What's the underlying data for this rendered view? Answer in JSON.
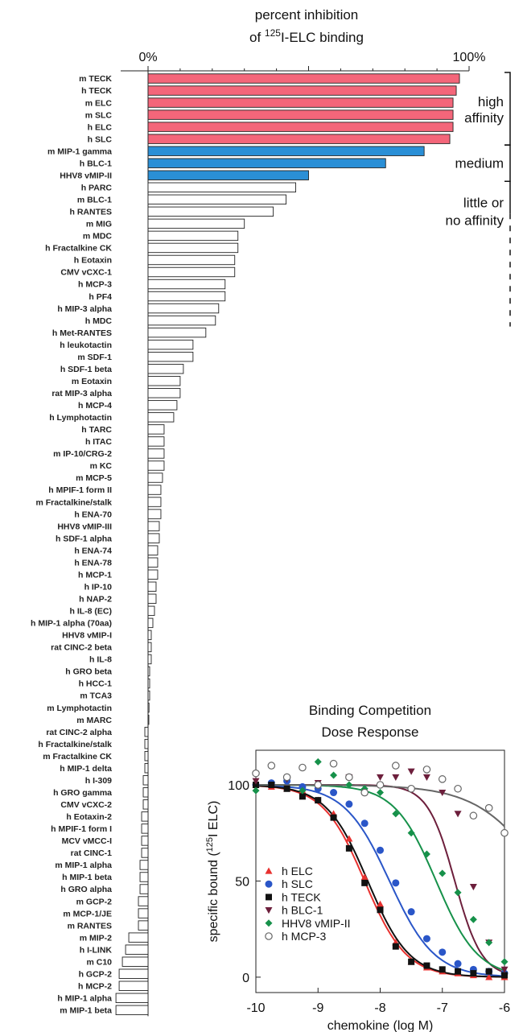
{
  "chart_data": [
    {
      "type": "bar",
      "orientation": "horizontal",
      "title_line1": "percent inhibition",
      "title_line2_pre": "of ",
      "title_line2_sup": "125",
      "title_line2_post": "I-ELC binding",
      "x_tick_labels": [
        "0%",
        "100%"
      ],
      "xlim": [
        -10,
        100
      ],
      "colors": {
        "high": "#f4667a",
        "medium": "#2a8fd6",
        "low": "#ffffff"
      },
      "groups": [
        {
          "label_lines": [
            "high",
            "affinity"
          ],
          "rows": [
            0,
            5
          ]
        },
        {
          "label_lines": [
            "medium"
          ],
          "rows": [
            6,
            8
          ]
        },
        {
          "label_lines": [
            "little or",
            "no affinity"
          ],
          "rows": [
            9,
            20
          ]
        }
      ],
      "categories": [
        "m TECK",
        "h TECK",
        "m ELC",
        "m SLC",
        "h ELC",
        "h SLC",
        "m MIP-1 gamma",
        "h BLC-1",
        "HHV8 vMIP-II",
        "h PARC",
        "m BLC-1",
        "h RANTES",
        "m MIG",
        "m MDC",
        "h Fractalkine  CK",
        "h Eotaxin",
        "CMV vCXC-1",
        "h MCP-3",
        "h PF4",
        "h MIP-3 alpha",
        "h MDC",
        "h Met-RANTES",
        "h leukotactin",
        "m SDF-1",
        "h SDF-1 beta",
        "m Eotaxin",
        "rat  MIP-3 alpha",
        "h MCP-4",
        "h Lymphotactin",
        "h TARC",
        "h ITAC",
        "m IP-10/CRG-2",
        "m KC",
        "m MCP-5",
        "h MPIF-1 form II",
        "m Fractalkine/stalk",
        "h ENA-70",
        "HHV8 vMIP-III",
        "h SDF-1 alpha",
        "h ENA-74",
        "h ENA-78",
        "h MCP-1",
        "h IP-10",
        "h NAP-2",
        "h IL-8 (EC)",
        "h MIP-1 alpha (70aa)",
        "HHV8 vMIP-I",
        "rat CINC-2 beta",
        "h IL-8",
        "h GRO beta",
        "h HCC-1",
        "m TCA3",
        "m Lymphotactin",
        "m MARC",
        "rat CINC-2 alpha",
        "h Fractalkine/stalk",
        "m Fractalkine  CK",
        "h MIP-1 delta",
        "h I-309",
        "h GRO gamma",
        "CMV vCXC-2",
        "h Eotaxin-2",
        "h MPIF-1 form I",
        "MCV vMCC-I",
        "rat CINC-1",
        "m MIP-1 alpha",
        "h MIP-1 beta",
        "h GRO alpha",
        "m GCP-2",
        "m MCP-1/JE",
        "m RANTES",
        "m MIP-2",
        "h I-LINK",
        "m C10",
        "h GCP-2",
        "h MCP-2",
        "h MIP-1 alpha",
        "m MIP-1 beta"
      ],
      "values": [
        97,
        96,
        95,
        95,
        95,
        94,
        86,
        74,
        50,
        46,
        43,
        39,
        30,
        28,
        28,
        27,
        27,
        24,
        24,
        22,
        21,
        18,
        14,
        14,
        11,
        10,
        10,
        9,
        8,
        5,
        5,
        5,
        5,
        4.5,
        4,
        4,
        4,
        3.5,
        3.5,
        3,
        3,
        3,
        2.5,
        2.5,
        2,
        1.5,
        1,
        1,
        1,
        0.5,
        0.5,
        0.5,
        0.3,
        0,
        -1,
        -1,
        -1,
        -1,
        -1.5,
        -1.5,
        -1.5,
        -2,
        -2,
        -2,
        -2,
        -2.5,
        -2.5,
        -2.5,
        -3,
        -3,
        -3,
        -6,
        -7,
        -8,
        -9,
        -9,
        -10,
        -10
      ]
    },
    {
      "type": "scatter",
      "title_line1": "Binding Competition",
      "title_line2": "Dose Response",
      "ylabel_pre": "specific bound (",
      "ylabel_sup": "125",
      "ylabel_post": "I ELC)",
      "xlabel": "chemokine (log M)",
      "xlim": [
        -10,
        -6
      ],
      "ylim": [
        -8,
        118
      ],
      "xticks": [
        -10,
        -9,
        -8,
        -7,
        -6
      ],
      "yticks": [
        0,
        50,
        100
      ],
      "series": [
        {
          "name": "h ELC",
          "color": "#e8312f",
          "marker": "triangle",
          "ec50": -8.25,
          "hill": 1.3,
          "x": [
            -10,
            -9.75,
            -9.5,
            -9.25,
            -9,
            -8.75,
            -8.5,
            -8.25,
            -8,
            -7.75,
            -7.5,
            -7.25,
            -7,
            -6.75,
            -6.5,
            -6.25,
            -6
          ],
          "y": [
            100,
            99,
            98,
            97,
            92,
            85,
            72,
            52,
            38,
            18,
            8,
            5,
            3,
            2,
            1,
            0,
            0
          ]
        },
        {
          "name": "h SLC",
          "color": "#2a56c8",
          "marker": "circle",
          "ec50": -7.85,
          "hill": 1.2,
          "x": [
            -10,
            -9.75,
            -9.5,
            -9.25,
            -9,
            -8.75,
            -8.5,
            -8.25,
            -8,
            -7.75,
            -7.5,
            -7.25,
            -7,
            -6.75,
            -6.5,
            -6.25,
            -6
          ],
          "y": [
            100,
            101,
            102,
            99,
            98,
            96,
            90,
            80,
            66,
            49,
            34,
            20,
            13,
            7,
            4,
            3,
            2
          ]
        },
        {
          "name": "h TECK",
          "color": "#111111",
          "marker": "square",
          "ec50": -8.2,
          "hill": 1.3,
          "x": [
            -10,
            -9.75,
            -9.5,
            -9.25,
            -9,
            -8.75,
            -8.5,
            -8.25,
            -8,
            -7.75,
            -7.5,
            -7.25,
            -7,
            -6.75,
            -6.5,
            -6.25,
            -6
          ],
          "y": [
            100,
            100,
            98,
            94,
            92,
            83,
            67,
            49,
            35,
            16,
            8,
            6,
            4,
            3,
            2,
            3,
            1
          ]
        },
        {
          "name": "h BLC-1",
          "color": "#6d1f3c",
          "marker": "triangle-down",
          "ec50": -6.8,
          "hill": 2.0,
          "x": [
            -10,
            -9.5,
            -9,
            -8.5,
            -8,
            -7.75,
            -7.5,
            -7.25,
            -7,
            -6.75,
            -6.5,
            -6.25,
            -6
          ],
          "y": [
            102,
            103,
            101,
            104,
            104,
            104,
            107,
            104,
            96,
            85,
            47,
            18,
            4
          ]
        },
        {
          "name": "HHV8 vMIP-II",
          "color": "#16914a",
          "marker": "diamond",
          "ec50": -7.1,
          "hill": 1.3,
          "x": [
            -10,
            -9.75,
            -9.5,
            -9.25,
            -9,
            -8.75,
            -8.5,
            -8.25,
            -8,
            -7.75,
            -7.5,
            -7.25,
            -7,
            -6.75,
            -6.5,
            -6.25,
            -6
          ],
          "y": [
            97,
            110,
            104,
            97,
            112,
            105,
            100,
            98,
            96,
            85,
            75,
            64,
            54,
            44,
            30,
            18,
            8
          ]
        },
        {
          "name": "h MCP-3",
          "color": "#666666",
          "marker": "circle-open",
          "ec50": -5.3,
          "hill": 0.8,
          "x": [
            -10,
            -9.75,
            -9.5,
            -9.25,
            -9,
            -8.75,
            -8.5,
            -8.25,
            -8,
            -7.75,
            -7.5,
            -7.25,
            -7,
            -6.75,
            -6.5,
            -6.25,
            -6
          ],
          "y": [
            106,
            110,
            104,
            109,
            100,
            111,
            104,
            96,
            100,
            110,
            98,
            108,
            103,
            98,
            84,
            88,
            75
          ]
        }
      ]
    }
  ]
}
